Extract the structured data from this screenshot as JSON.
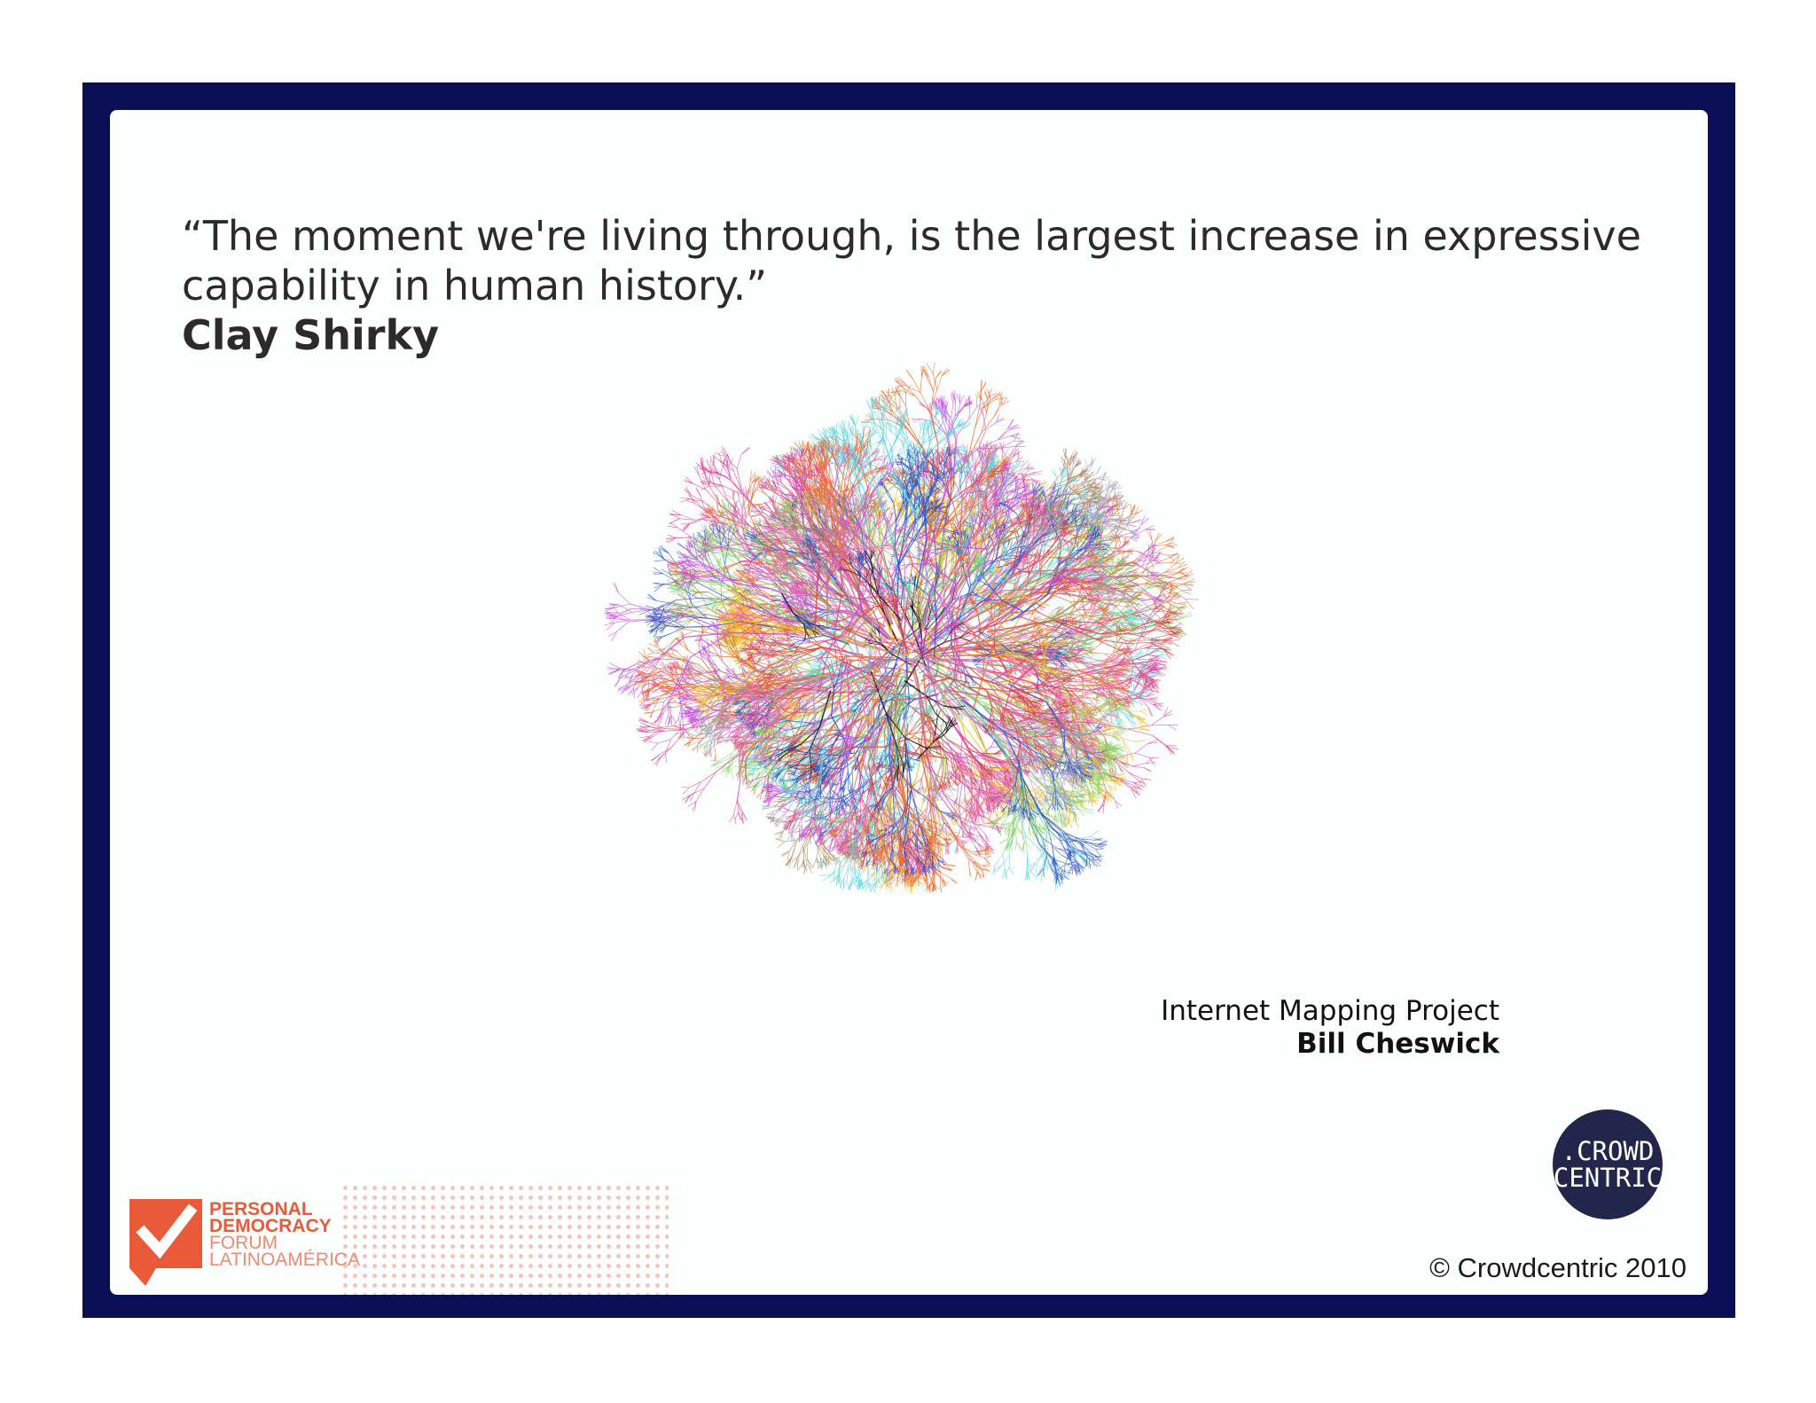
{
  "slide": {
    "quote": "“The moment we're living through, is the largest increase in expressive capability in human history.”",
    "author": "Clay Shirky",
    "image_credit": {
      "project": "Internet Mapping Project",
      "name": "Bill Cheswick"
    },
    "copyright": "© Crowdcentric 2010"
  },
  "logos": {
    "crowdcentric": {
      "line1": ".CROWD",
      "line2": "CENTRIC"
    },
    "pdf": {
      "line1": "PERSONAL",
      "line2": "DEMOCRACY",
      "line3": "FORUM",
      "line4": "LATINOAMÉRICA"
    }
  },
  "colors": {
    "frame": "#0a0e55",
    "slide_bg": "#fdfefe",
    "logo_circle": "#22264a",
    "pdf_orange": "#e85a3a",
    "map_palette": [
      "#e0459a",
      "#f06a2a",
      "#c84fe0",
      "#8ad36a",
      "#62d6e0",
      "#2f56c8",
      "#d64848",
      "#b08a5a",
      "#a7a0c0",
      "#f2c12e",
      "#e870b0",
      "#111111"
    ]
  }
}
